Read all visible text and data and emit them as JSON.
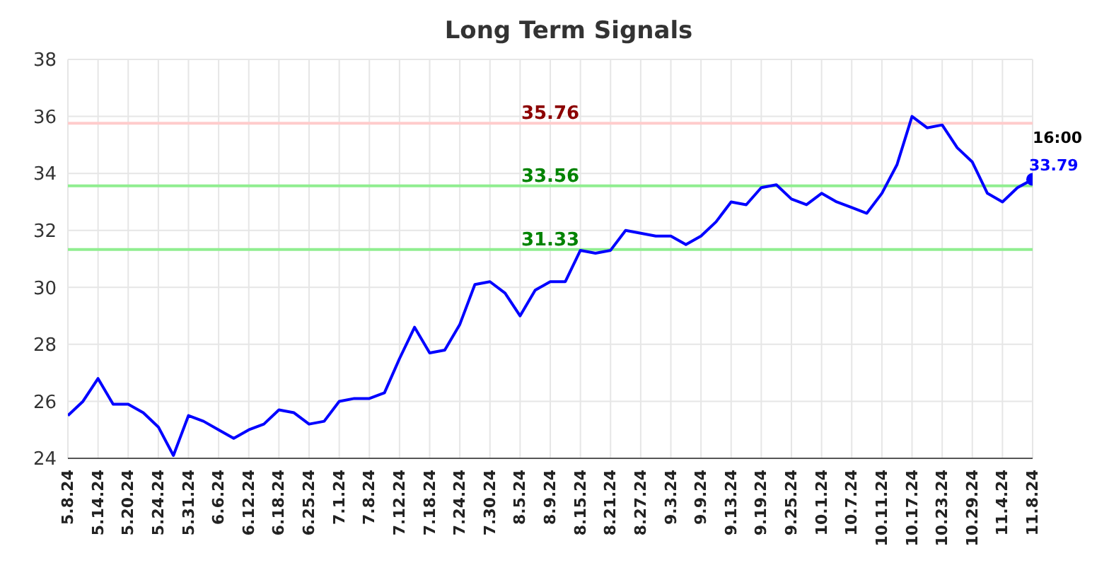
{
  "chart_data": {
    "type": "line",
    "title": "Long Term Signals",
    "categories": [
      "5.8.24",
      null,
      "5.14.24",
      null,
      "5.20.24",
      null,
      "5.24.24",
      null,
      "5.31.24",
      null,
      "6.6.24",
      null,
      "6.12.24",
      null,
      "6.18.24",
      null,
      "6.25.24",
      null,
      "7.1.24",
      null,
      "7.8.24",
      null,
      "7.12.24",
      null,
      "7.18.24",
      null,
      "7.24.24",
      null,
      "7.30.24",
      null,
      "8.5.24",
      null,
      "8.9.24",
      null,
      "8.15.24",
      null,
      "8.21.24",
      null,
      "8.27.24",
      null,
      "9.3.24",
      null,
      "9.9.24",
      null,
      "9.13.24",
      null,
      "9.19.24",
      null,
      "9.25.24",
      null,
      "10.1.24",
      null,
      "10.7.24",
      null,
      "10.11.24",
      null,
      "10.17.24",
      null,
      "10.23.24",
      null,
      "10.29.24",
      null,
      "11.4.24",
      null,
      "11.8.24"
    ],
    "series": [
      {
        "color": "#0000ff",
        "values": [
          25.5,
          26.0,
          26.8,
          25.9,
          25.9,
          25.6,
          25.1,
          24.1,
          25.5,
          25.3,
          25.0,
          24.7,
          25.0,
          25.2,
          25.7,
          25.6,
          25.2,
          25.3,
          26.0,
          26.1,
          26.1,
          26.3,
          27.5,
          28.6,
          27.7,
          27.8,
          28.7,
          30.1,
          30.2,
          29.8,
          29.0,
          29.9,
          30.2,
          30.2,
          31.3,
          31.2,
          31.3,
          32.0,
          31.9,
          31.8,
          31.8,
          31.5,
          31.8,
          32.3,
          33.0,
          32.9,
          33.5,
          33.6,
          33.1,
          32.9,
          33.3,
          33.0,
          32.8,
          32.6,
          33.3,
          34.3,
          36.0,
          35.6,
          35.7,
          34.9,
          34.4,
          33.3,
          33.0,
          33.5,
          33.79
        ]
      },
      {
        "type": "scatter",
        "color": "#0000ff",
        "x": [
          "11.8.24"
        ],
        "values": [
          33.79
        ],
        "value_labels": [
          "33.79"
        ]
      }
    ],
    "ylim": [
      24,
      38
    ],
    "yticks": [
      24,
      26,
      28,
      30,
      32,
      34,
      36,
      38
    ],
    "grid": true,
    "ref_lines": [
      {
        "axis": "y",
        "value": 35.76,
        "label": "35.76",
        "color": "#ffcccc"
      },
      {
        "axis": "y",
        "value": 33.56,
        "label": "33.56",
        "color": "#90ee90"
      },
      {
        "axis": "y",
        "value": 31.33,
        "label": "31.33",
        "color": "#90ee90"
      }
    ],
    "annotations": [
      {
        "text": "16:00",
        "x": "11.8.24",
        "y": 33.79
      }
    ]
  }
}
